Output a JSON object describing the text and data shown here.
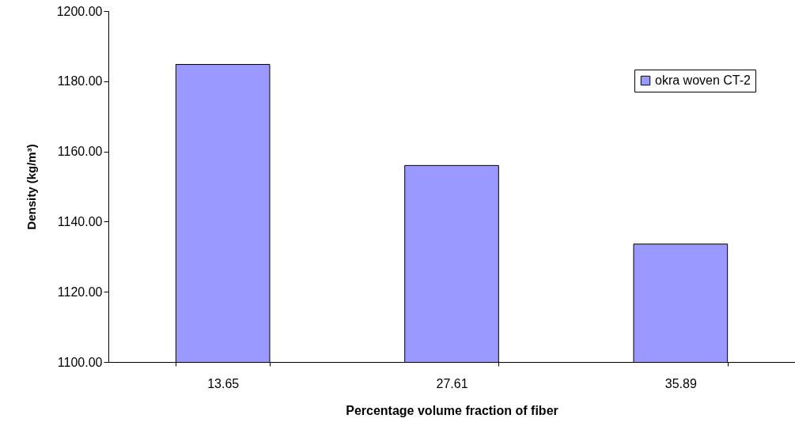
{
  "chart_data": {
    "type": "bar",
    "xlabel": "Percentage volume fraction of fiber",
    "ylabel": "Density (kg/m³)",
    "categories": [
      "13.65",
      "27.61",
      "35.89"
    ],
    "series": [
      {
        "name": "okra woven CT-2",
        "color": "#9999ff",
        "values": [
          1184.8,
          1156.0,
          1133.6
        ]
      }
    ],
    "ylim": [
      1100,
      1200
    ],
    "yticks": [
      {
        "value": 1100,
        "label": "1100.00"
      },
      {
        "value": 1120,
        "label": "1120.00"
      },
      {
        "value": 1140,
        "label": "1140.00"
      },
      {
        "value": 1160,
        "label": "1160.00"
      },
      {
        "value": 1180,
        "label": "1180.00"
      },
      {
        "value": 1200,
        "label": "1200.00"
      }
    ],
    "grid": false,
    "legend": "top right"
  }
}
